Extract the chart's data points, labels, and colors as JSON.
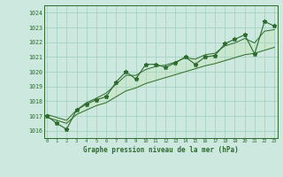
{
  "xlabel": "Graphe pression niveau de la mer (hPa)",
  "x": [
    0,
    1,
    2,
    3,
    4,
    5,
    6,
    7,
    8,
    9,
    10,
    11,
    12,
    13,
    14,
    15,
    16,
    17,
    18,
    19,
    20,
    21,
    22,
    23
  ],
  "y_pressure": [
    1017.0,
    1016.5,
    1016.1,
    1017.4,
    1017.8,
    1018.1,
    1018.3,
    1019.3,
    1020.0,
    1019.5,
    1020.5,
    1020.5,
    1020.3,
    1020.6,
    1021.0,
    1020.5,
    1021.0,
    1021.1,
    1021.9,
    1022.2,
    1022.5,
    1021.2,
    1023.4,
    1023.1
  ],
  "y_min_line": [
    1016.9,
    1016.7,
    1016.5,
    1017.1,
    1017.4,
    1017.7,
    1017.9,
    1018.3,
    1018.7,
    1018.9,
    1019.2,
    1019.4,
    1019.6,
    1019.8,
    1020.0,
    1020.2,
    1020.4,
    1020.55,
    1020.75,
    1020.95,
    1021.15,
    1021.25,
    1021.45,
    1021.65
  ],
  "y_max_line": [
    1017.1,
    1016.9,
    1016.7,
    1017.4,
    1017.9,
    1018.2,
    1018.55,
    1019.15,
    1019.75,
    1019.75,
    1020.15,
    1020.35,
    1020.45,
    1020.65,
    1020.95,
    1020.85,
    1021.15,
    1021.25,
    1021.75,
    1021.95,
    1022.25,
    1021.95,
    1022.75,
    1022.85
  ],
  "ylim": [
    1015.5,
    1024.5
  ],
  "xlim": [
    -0.3,
    23.3
  ],
  "yticks": [
    1016,
    1017,
    1018,
    1019,
    1020,
    1021,
    1022,
    1023,
    1024
  ],
  "xticks": [
    0,
    1,
    2,
    3,
    4,
    5,
    6,
    7,
    8,
    9,
    10,
    11,
    12,
    13,
    14,
    15,
    16,
    17,
    18,
    19,
    20,
    21,
    22,
    23
  ],
  "line_color": "#2d6a2d",
  "fill_color": "#c8e6c8",
  "bg_color": "#cce8df",
  "grid_color": "#9fcfbf",
  "marker_size": 3.5
}
